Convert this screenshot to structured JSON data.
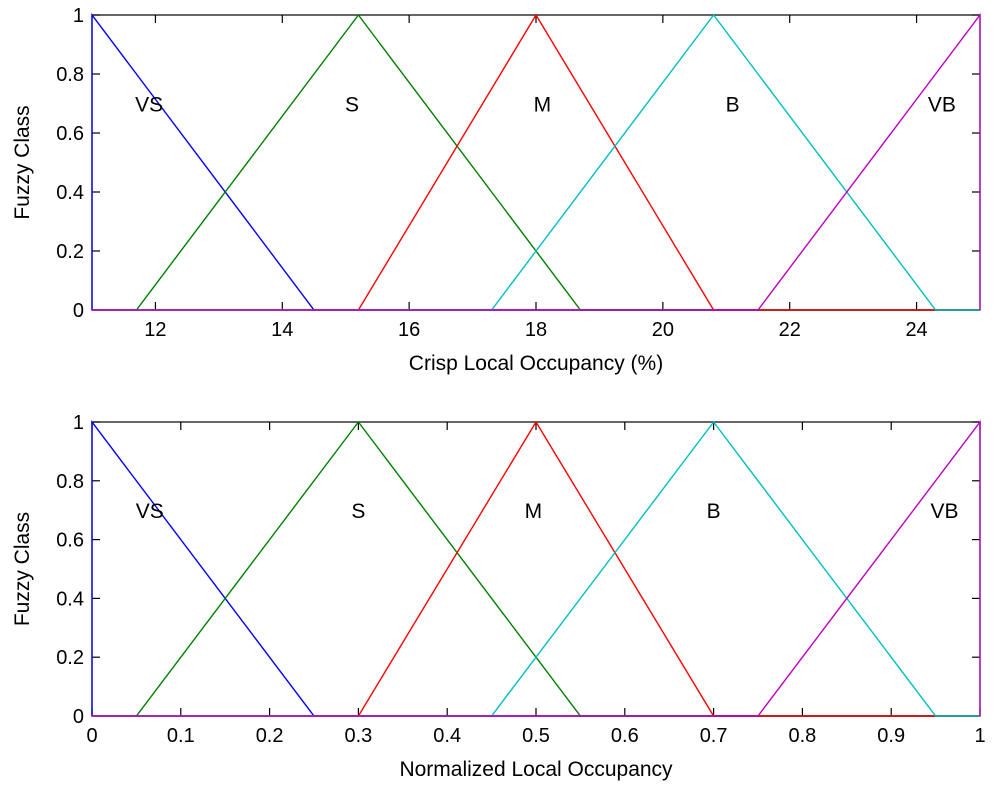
{
  "chart_data": [
    {
      "type": "line",
      "xlabel": "Crisp Local Occupancy (%)",
      "ylabel": "Fuzzy Class",
      "xlim": [
        11,
        25
      ],
      "ylim": [
        0,
        1
      ],
      "xticks": [
        12,
        14,
        16,
        18,
        20,
        22,
        24
      ],
      "yticks": [
        0,
        0.2,
        0.4,
        0.6,
        0.8,
        1
      ],
      "grid": false,
      "series": [
        {
          "name": "VS",
          "color": "#0000ff",
          "x": [
            11,
            11,
            14.5,
            25
          ],
          "y": [
            0,
            1,
            0,
            0
          ],
          "label_at": [
            11.9,
            0.7
          ]
        },
        {
          "name": "S",
          "color": "#008000",
          "x": [
            11,
            11.7,
            15.2,
            18.7,
            25
          ],
          "y": [
            0,
            0,
            1,
            0,
            0
          ],
          "label_at": [
            15.1,
            0.7
          ]
        },
        {
          "name": "M",
          "color": "#ff0000",
          "x": [
            11,
            15.2,
            18,
            20.8,
            25
          ],
          "y": [
            0,
            0,
            1,
            0,
            0
          ],
          "label_at": [
            18.1,
            0.7
          ]
        },
        {
          "name": "B",
          "color": "#00bfbf",
          "x": [
            11,
            17.3,
            20.8,
            24.3,
            25
          ],
          "y": [
            0,
            0,
            1,
            0,
            0
          ],
          "label_at": [
            21.1,
            0.7
          ]
        },
        {
          "name": "VB",
          "color": "#bf00bf",
          "x": [
            11,
            21.5,
            25,
            25
          ],
          "y": [
            0,
            0,
            1,
            0
          ],
          "label_at": [
            24.4,
            0.7
          ]
        }
      ]
    },
    {
      "type": "line",
      "xlabel": "Normalized Local Occupancy",
      "ylabel": "Fuzzy Class",
      "xlim": [
        0,
        1
      ],
      "ylim": [
        0,
        1
      ],
      "xticks": [
        0,
        0.1,
        0.2,
        0.3,
        0.4,
        0.5,
        0.6,
        0.7,
        0.8,
        0.9,
        1
      ],
      "yticks": [
        0,
        0.2,
        0.4,
        0.6,
        0.8,
        1
      ],
      "grid": false,
      "series": [
        {
          "name": "VS",
          "color": "#0000ff",
          "x": [
            0,
            0,
            0.25,
            1
          ],
          "y": [
            0,
            1,
            0,
            0
          ],
          "label_at": [
            0.065,
            0.7
          ]
        },
        {
          "name": "S",
          "color": "#008000",
          "x": [
            0,
            0.05,
            0.3,
            0.55,
            1
          ],
          "y": [
            0,
            0,
            1,
            0,
            0
          ],
          "label_at": [
            0.3,
            0.7
          ]
        },
        {
          "name": "M",
          "color": "#ff0000",
          "x": [
            0,
            0.3,
            0.5,
            0.7,
            1
          ],
          "y": [
            0,
            0,
            1,
            0,
            0
          ],
          "label_at": [
            0.497,
            0.7
          ]
        },
        {
          "name": "B",
          "color": "#00bfbf",
          "x": [
            0,
            0.45,
            0.7,
            0.95,
            1
          ],
          "y": [
            0,
            0,
            1,
            0,
            0
          ],
          "label_at": [
            0.7,
            0.7
          ]
        },
        {
          "name": "VB",
          "color": "#bf00bf",
          "x": [
            0,
            0.75,
            1,
            1
          ],
          "y": [
            0,
            0,
            1,
            0
          ],
          "label_at": [
            0.96,
            0.7
          ]
        }
      ]
    }
  ]
}
